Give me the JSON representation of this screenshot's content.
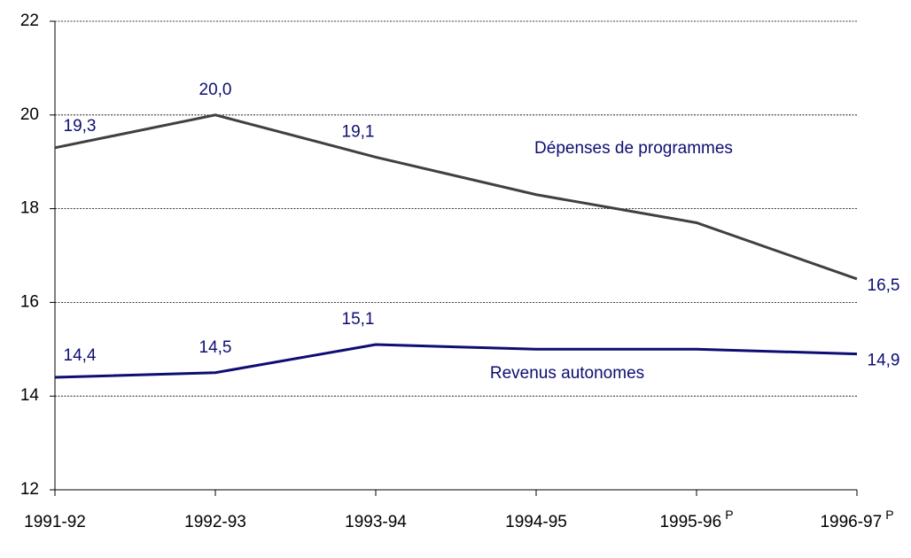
{
  "chart_data": {
    "type": "line",
    "categories": [
      "1991-92",
      "1992-93",
      "1993-94",
      "1994-95",
      "1995-96",
      "1996-97"
    ],
    "category_superscripts": [
      null,
      null,
      null,
      null,
      "P",
      "P"
    ],
    "series": [
      {
        "name": "Dépenses de programmes",
        "color": "#404040",
        "values": [
          19.3,
          20.0,
          19.1,
          18.3,
          17.7,
          16.5
        ],
        "value_labels": [
          "19,3",
          "20,0",
          "19,1",
          null,
          null,
          "16,5"
        ]
      },
      {
        "name": "Revenus autonomes",
        "color": "#0d0d73",
        "values": [
          14.4,
          14.5,
          15.1,
          15.0,
          15.0,
          14.9
        ],
        "value_labels": [
          "14,4",
          "14,5",
          "15,1",
          null,
          null,
          "14,9"
        ]
      }
    ],
    "ylim": [
      12,
      22
    ],
    "yticks": [
      12,
      14,
      16,
      18,
      20,
      22
    ],
    "grid": true
  }
}
